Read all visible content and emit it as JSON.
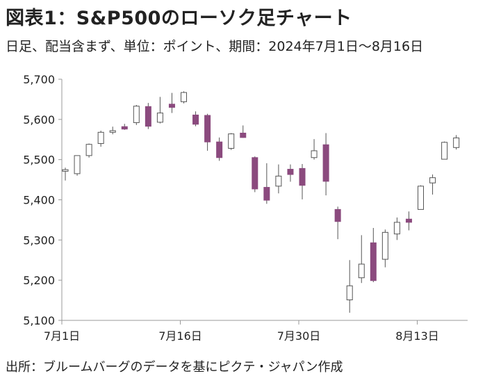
{
  "header": {
    "title": "図表1：S&P500のローソク足チャート",
    "subtitle": "日足、配当含まず、単位：ポイント、期間：2024年7月1日～8月16日"
  },
  "footer": {
    "source": "出所：ブルームバーグのデータを基にピクテ・ジャパン作成"
  },
  "colors": {
    "up_fill": "#ffffff",
    "down_fill": "#8b4a7e",
    "outline": "#555555",
    "axis": "#999999"
  },
  "chart_data": {
    "type": "candlestick",
    "title": "図表1：S&P500のローソク足チャート",
    "ylim": [
      5100,
      5700
    ],
    "y_ticks": [
      "5,100",
      "5,200",
      "5,300",
      "5,400",
      "5,500",
      "5,600",
      "5,700"
    ],
    "x_tick_labels": [
      {
        "label": "7月1日",
        "index": 0
      },
      {
        "label": "7月16日",
        "index": 10
      },
      {
        "label": "7月30日",
        "index": 20
      },
      {
        "label": "8月13日",
        "index": 30
      }
    ],
    "grid": false,
    "legend": "none",
    "candles": [
      {
        "date": "7/1",
        "open": 5471,
        "high": 5480,
        "low": 5448,
        "close": 5475
      },
      {
        "date": "7/2",
        "open": 5465,
        "high": 5510,
        "low": 5460,
        "close": 5510
      },
      {
        "date": "7/3",
        "open": 5510,
        "high": 5540,
        "low": 5505,
        "close": 5538
      },
      {
        "date": "7/5",
        "open": 5540,
        "high": 5572,
        "low": 5532,
        "close": 5568
      },
      {
        "date": "7/8",
        "open": 5568,
        "high": 5582,
        "low": 5563,
        "close": 5572
      },
      {
        "date": "7/9",
        "open": 5582,
        "high": 5589,
        "low": 5574,
        "close": 5576
      },
      {
        "date": "7/10",
        "open": 5592,
        "high": 5636,
        "low": 5586,
        "close": 5633
      },
      {
        "date": "7/11",
        "open": 5632,
        "high": 5641,
        "low": 5576,
        "close": 5583
      },
      {
        "date": "7/12",
        "open": 5593,
        "high": 5656,
        "low": 5590,
        "close": 5616
      },
      {
        "date": "7/15",
        "open": 5638,
        "high": 5666,
        "low": 5616,
        "close": 5630
      },
      {
        "date": "7/16",
        "open": 5644,
        "high": 5670,
        "low": 5640,
        "close": 5667
      },
      {
        "date": "7/17",
        "open": 5611,
        "high": 5620,
        "low": 5583,
        "close": 5588
      },
      {
        "date": "7/18",
        "open": 5610,
        "high": 5614,
        "low": 5522,
        "close": 5544
      },
      {
        "date": "7/19",
        "open": 5544,
        "high": 5555,
        "low": 5497,
        "close": 5505
      },
      {
        "date": "7/22",
        "open": 5528,
        "high": 5566,
        "low": 5524,
        "close": 5564
      },
      {
        "date": "7/23",
        "open": 5566,
        "high": 5585,
        "low": 5554,
        "close": 5555
      },
      {
        "date": "7/24",
        "open": 5505,
        "high": 5508,
        "low": 5419,
        "close": 5427
      },
      {
        "date": "7/25",
        "open": 5431,
        "high": 5491,
        "low": 5390,
        "close": 5399
      },
      {
        "date": "7/26",
        "open": 5434,
        "high": 5488,
        "low": 5416,
        "close": 5459
      },
      {
        "date": "7/29",
        "open": 5476,
        "high": 5488,
        "low": 5445,
        "close": 5463
      },
      {
        "date": "7/30",
        "open": 5478,
        "high": 5489,
        "low": 5401,
        "close": 5436
      },
      {
        "date": "7/31",
        "open": 5505,
        "high": 5551,
        "low": 5500,
        "close": 5522
      },
      {
        "date": "8/1",
        "open": 5537,
        "high": 5566,
        "low": 5411,
        "close": 5446
      },
      {
        "date": "8/2",
        "open": 5376,
        "high": 5383,
        "low": 5302,
        "close": 5346
      },
      {
        "date": "8/5",
        "open": 5151,
        "high": 5250,
        "low": 5119,
        "close": 5186
      },
      {
        "date": "8/6",
        "open": 5206,
        "high": 5312,
        "low": 5193,
        "close": 5240
      },
      {
        "date": "8/7",
        "open": 5293,
        "high": 5330,
        "low": 5195,
        "close": 5199
      },
      {
        "date": "8/8",
        "open": 5252,
        "high": 5326,
        "low": 5232,
        "close": 5319
      },
      {
        "date": "8/9",
        "open": 5315,
        "high": 5356,
        "low": 5300,
        "close": 5344
      },
      {
        "date": "8/12",
        "open": 5352,
        "high": 5371,
        "low": 5324,
        "close": 5344
      },
      {
        "date": "8/13",
        "open": 5376,
        "high": 5436,
        "low": 5376,
        "close": 5434
      },
      {
        "date": "8/14",
        "open": 5442,
        "high": 5463,
        "low": 5413,
        "close": 5455
      },
      {
        "date": "8/15",
        "open": 5501,
        "high": 5545,
        "low": 5501,
        "close": 5543
      },
      {
        "date": "8/16",
        "open": 5530,
        "high": 5561,
        "low": 5525,
        "close": 5554
      }
    ]
  }
}
